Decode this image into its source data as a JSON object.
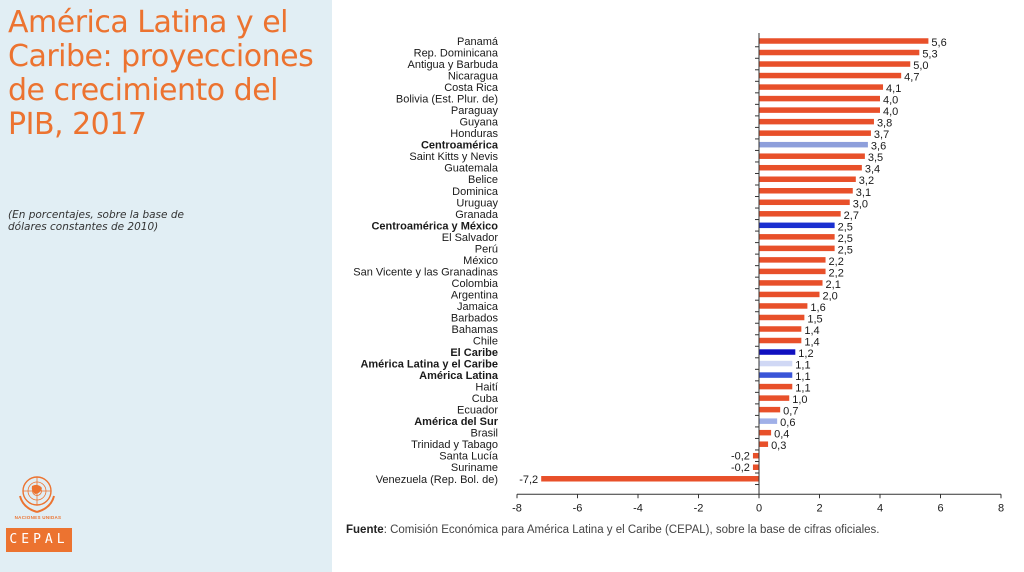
{
  "left_panel": {
    "title": "América Latina y el Caribe: proyecciones de crecimiento del PIB, 2017",
    "subtitle": "(En porcentajes, sobre la base de dólares constantes de 2010)",
    "un_caption": "NACIONES UNIDAS",
    "cepal_logo": "CEPAL",
    "logo_icon": "un-emblem-icon"
  },
  "source": {
    "label": "Fuente",
    "text": ": Comisión Económica para América Latina y el Caribe (CEPAL), sobre la base de cifras oficiales."
  },
  "colors": {
    "country": "#e8502a",
    "title": "#ec7330",
    "Centroamérica": "#8e9fdb",
    "Centroamérica y México": "#1a2fd0",
    "El Caribe": "#1010c0",
    "América Latina y el Caribe": "#d0d8f5",
    "América Latina": "#3a55d8",
    "América del Sur": "#a0b0e8"
  },
  "chart_data": {
    "type": "bar",
    "orientation": "horizontal",
    "title": "América Latina y el Caribe: proyecciones de crecimiento del PIB, 2017",
    "xlabel": "",
    "ylabel": "",
    "xlim": [
      -8,
      8
    ],
    "xticks": [
      -8,
      -6,
      -4,
      -2,
      0,
      2,
      4,
      6,
      8
    ],
    "grid": false,
    "categories": [
      "Panamá",
      "Rep. Dominicana",
      "Antigua y Barbuda",
      "Nicaragua",
      "Costa Rica",
      "Bolivia (Est. Plur. de)",
      "Paraguay",
      "Guyana",
      "Honduras",
      "Centroamérica",
      "Saint Kitts y Nevis",
      "Guatemala",
      "Belice",
      "Dominica",
      "Uruguay",
      "Granada",
      "Centroamérica y México",
      "El Salvador",
      "Perú",
      "México",
      "San Vicente y las Granadinas",
      "Colombia",
      "Argentina",
      "Jamaica",
      "Barbados",
      "Bahamas",
      "Chile",
      "El Caribe",
      "América Latina y el Caribe",
      "América Latina",
      "Haití",
      "Cuba",
      "Ecuador",
      "América del Sur",
      "Brasil",
      "Trinidad y Tabago",
      "Santa Lucía",
      "Suriname",
      "Venezuela (Rep. Bol. de)"
    ],
    "values": [
      5.6,
      5.3,
      5.0,
      4.7,
      4.1,
      4.0,
      4.0,
      3.8,
      3.7,
      3.6,
      3.5,
      3.4,
      3.2,
      3.1,
      3.0,
      2.7,
      2.5,
      2.5,
      2.5,
      2.2,
      2.2,
      2.1,
      2.0,
      1.6,
      1.5,
      1.4,
      1.4,
      1.2,
      1.1,
      1.1,
      1.1,
      1.0,
      0.7,
      0.6,
      0.4,
      0.3,
      -0.2,
      -0.2,
      -7.2
    ],
    "value_labels": [
      "5,6",
      "5,3",
      "5,0",
      "4,7",
      "4,1",
      "4,0",
      "4,0",
      "3,8",
      "3,7",
      "3,6",
      "3,5",
      "3,4",
      "3,2",
      "3,1",
      "3,0",
      "2,7",
      "2,5",
      "2,5",
      "2,5",
      "2,2",
      "2,2",
      "2,1",
      "2,0",
      "1,6",
      "1,5",
      "1,4",
      "1,4",
      "1,2",
      "1,1",
      "1,1",
      "1,1",
      "1,0",
      "0,7",
      "0,6",
      "0,4",
      "0,3",
      "-0,2",
      "-0,2",
      "-7,2"
    ],
    "aggregates": [
      "Centroamérica",
      "Centroamérica y México",
      "El Caribe",
      "América Latina y el Caribe",
      "América Latina",
      "América del Sur"
    ]
  }
}
